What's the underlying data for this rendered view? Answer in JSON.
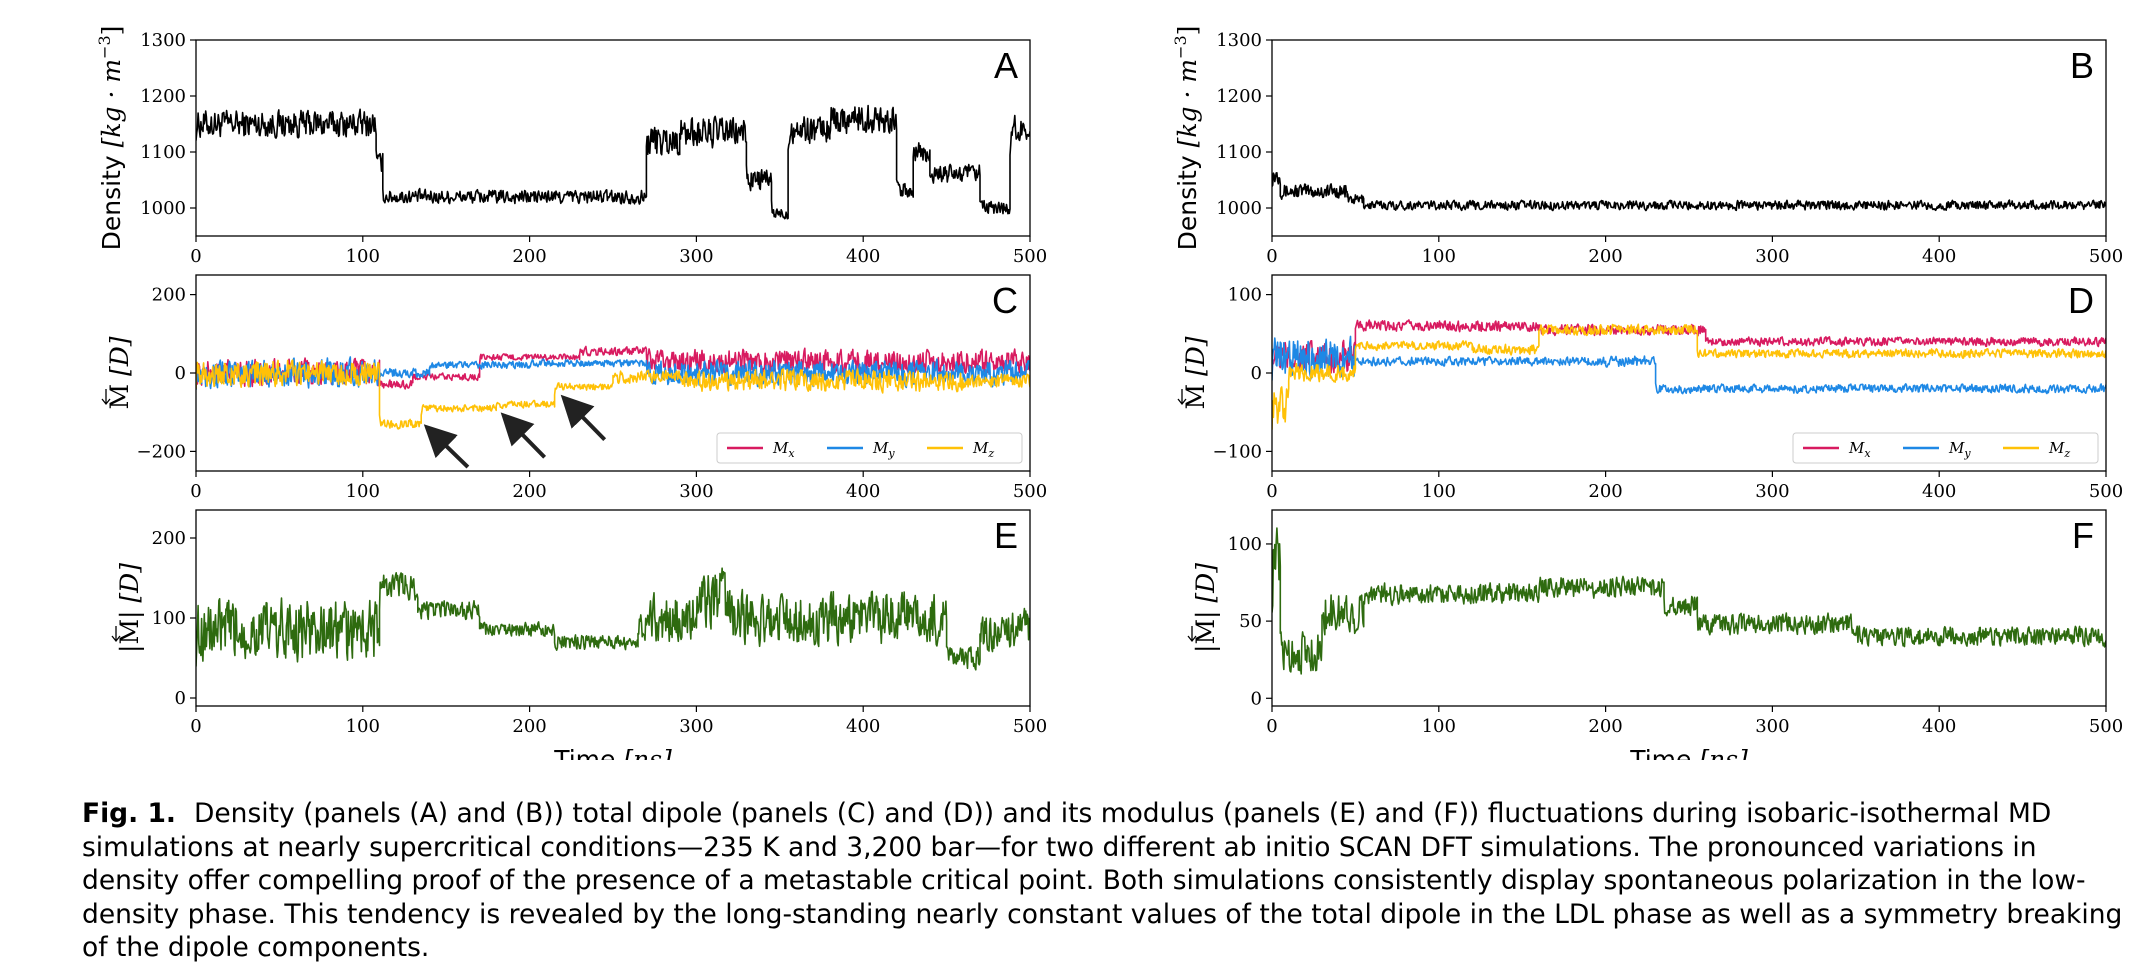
{
  "figure": {
    "panels_left": [
      "A",
      "C",
      "E"
    ],
    "panels_right": [
      "B",
      "D",
      "F"
    ]
  },
  "chart_data": [
    {
      "id": "A",
      "type": "line",
      "title": "",
      "xlabel": "",
      "ylabel": "Density [kg · m^-3]",
      "ylabel_parts": [
        "Density ",
        "[kg · m",
        "−3",
        "]"
      ],
      "xlim": [
        0,
        500
      ],
      "ylim": [
        950,
        1300
      ],
      "xticks": [
        0,
        100,
        200,
        300,
        400,
        500
      ],
      "xtick_labels": [
        "0",
        "100",
        "200",
        "300",
        "400",
        "500"
      ],
      "yticks": [
        1000,
        1100,
        1200,
        1300
      ],
      "ytick_labels": [
        "1000",
        "1100",
        "1200",
        "1300"
      ],
      "series": [
        {
          "color": "#000000",
          "segments": [
            [
              0,
              108,
              1150,
              55
            ],
            [
              108,
              112,
              1080,
              40
            ],
            [
              112,
              270,
              1020,
              28
            ],
            [
              270,
              290,
              1120,
              65
            ],
            [
              290,
              330,
              1135,
              60
            ],
            [
              330,
              345,
              1050,
              45
            ],
            [
              345,
              355,
              990,
              25
            ],
            [
              355,
              380,
              1140,
              55
            ],
            [
              380,
              420,
              1160,
              60
            ],
            [
              420,
              430,
              1030,
              35
            ],
            [
              430,
              440,
              1100,
              60
            ],
            [
              440,
              470,
              1060,
              40
            ],
            [
              470,
              488,
              1000,
              30
            ],
            [
              488,
              500,
              1140,
              55
            ]
          ]
        }
      ]
    },
    {
      "id": "B",
      "type": "line",
      "title": "",
      "xlabel": "",
      "ylabel": "Density [kg · m^-3]",
      "ylabel_parts": [
        "Density ",
        "[kg · m",
        "−3",
        "]"
      ],
      "xlim": [
        0,
        500
      ],
      "ylim": [
        950,
        1300
      ],
      "xticks": [
        0,
        100,
        200,
        300,
        400,
        500
      ],
      "xtick_labels": [
        "0",
        "100",
        "200",
        "300",
        "400",
        "500"
      ],
      "yticks": [
        1000,
        1100,
        1200,
        1300
      ],
      "ytick_labels": [
        "1000",
        "1100",
        "1200",
        "1300"
      ],
      "series": [
        {
          "color": "#000000",
          "segments": [
            [
              0,
              5,
              1060,
              40
            ],
            [
              5,
              45,
              1030,
              30
            ],
            [
              45,
              55,
              1015,
              22
            ],
            [
              55,
              500,
              1005,
              18
            ]
          ]
        }
      ]
    },
    {
      "id": "C",
      "type": "line",
      "title": "",
      "xlabel": "",
      "ylabel": "M [D]",
      "ylabel_parts": [
        "M",
        " [D]"
      ],
      "xlim": [
        0,
        500
      ],
      "ylim": [
        -250,
        250
      ],
      "xticks": [
        0,
        100,
        200,
        300,
        400,
        500
      ],
      "xtick_labels": [
        "0",
        "100",
        "200",
        "300",
        "400",
        "500"
      ],
      "yticks": [
        -200,
        0,
        200
      ],
      "ytick_labels": [
        "−200",
        "0",
        "200"
      ],
      "legend": {
        "placement": "lower-right",
        "entries": [
          "M_x",
          "M_y",
          "M_z"
        ]
      },
      "series": [
        {
          "name": "M_x",
          "label_sub": "x",
          "color": "#d81b60",
          "segments": [
            [
              0,
              110,
              0,
              75
            ],
            [
              110,
              130,
              -30,
              25
            ],
            [
              130,
              170,
              -10,
              20
            ],
            [
              170,
              230,
              40,
              18
            ],
            [
              230,
              270,
              55,
              25
            ],
            [
              270,
              500,
              30,
              65
            ]
          ]
        },
        {
          "name": "M_y",
          "label_sub": "y",
          "color": "#1e88e5",
          "segments": [
            [
              0,
              110,
              0,
              80
            ],
            [
              110,
              140,
              0,
              25
            ],
            [
              140,
              200,
              20,
              20
            ],
            [
              200,
              270,
              25,
              20
            ],
            [
              270,
              500,
              0,
              70
            ]
          ]
        },
        {
          "name": "M_z",
          "label_sub": "z",
          "color": "#ffc107",
          "segments": [
            [
              0,
              110,
              0,
              75
            ],
            [
              110,
              135,
              -130,
              25
            ],
            [
              135,
              180,
              -90,
              20
            ],
            [
              180,
              215,
              -80,
              20
            ],
            [
              215,
              250,
              -35,
              20
            ],
            [
              250,
              290,
              -10,
              35
            ],
            [
              290,
              460,
              -20,
              60
            ],
            [
              460,
              500,
              -20,
              40
            ]
          ]
        }
      ],
      "annotations": [
        {
          "type": "arrow",
          "from": [
            163,
            -240
          ],
          "to": [
            140,
            -145
          ]
        },
        {
          "type": "arrow",
          "from": [
            209,
            -215
          ],
          "to": [
            186,
            -115
          ]
        },
        {
          "type": "arrow",
          "from": [
            245,
            -170
          ],
          "to": [
            222,
            -70
          ]
        }
      ]
    },
    {
      "id": "D",
      "type": "line",
      "title": "",
      "xlabel": "",
      "ylabel": "M [D]",
      "ylabel_parts": [
        "M",
        " [D]"
      ],
      "xlim": [
        0,
        500
      ],
      "ylim": [
        -125,
        125
      ],
      "xticks": [
        0,
        100,
        200,
        300,
        400,
        500
      ],
      "xtick_labels": [
        "0",
        "100",
        "200",
        "300",
        "400",
        "500"
      ],
      "yticks": [
        -100,
        0,
        100
      ],
      "ytick_labels": [
        "−100",
        "0",
        "100"
      ],
      "legend": {
        "placement": "lower-right",
        "entries": [
          "M_x",
          "M_y",
          "M_z"
        ]
      },
      "series": [
        {
          "name": "M_x",
          "label_sub": "x",
          "color": "#d81b60",
          "segments": [
            [
              0,
              50,
              20,
              45
            ],
            [
              50,
              160,
              60,
              15
            ],
            [
              160,
              260,
              55,
              15
            ],
            [
              260,
              500,
              40,
              12
            ]
          ]
        },
        {
          "name": "M_y",
          "label_sub": "y",
          "color": "#1e88e5",
          "segments": [
            [
              0,
              50,
              20,
              55
            ],
            [
              50,
              200,
              15,
              12
            ],
            [
              200,
              230,
              15,
              15
            ],
            [
              230,
              500,
              -20,
              12
            ]
          ]
        },
        {
          "name": "M_z",
          "label_sub": "z",
          "color": "#ffc107",
          "segments": [
            [
              0,
              10,
              -40,
              60
            ],
            [
              10,
              50,
              0,
              25
            ],
            [
              50,
              120,
              35,
              12
            ],
            [
              120,
              160,
              30,
              15
            ],
            [
              160,
              255,
              55,
              15
            ],
            [
              255,
              500,
              25,
              12
            ]
          ]
        }
      ]
    },
    {
      "id": "E",
      "type": "line",
      "title": "",
      "xlabel": "Time [ns]",
      "xlabel_parts": [
        "Time ",
        "[ns]"
      ],
      "ylabel": "|M| [D]",
      "ylabel_parts": [
        "|M|",
        " [D]"
      ],
      "xlim": [
        0,
        500
      ],
      "ylim": [
        -10,
        235
      ],
      "xticks": [
        0,
        100,
        200,
        300,
        400,
        500
      ],
      "xtick_labels": [
        "0",
        "100",
        "200",
        "300",
        "400",
        "500"
      ],
      "yticks": [
        0,
        100,
        200
      ],
      "ytick_labels": [
        "0",
        "100",
        "200"
      ],
      "series": [
        {
          "color": "#2e6b0f",
          "segments": [
            [
              0,
              110,
              85,
              85
            ],
            [
              110,
              133,
              140,
              40
            ],
            [
              133,
              170,
              110,
              25
            ],
            [
              170,
              215,
              85,
              20
            ],
            [
              215,
              265,
              70,
              20
            ],
            [
              265,
              300,
              100,
              65
            ],
            [
              300,
              320,
              125,
              80
            ],
            [
              320,
              450,
              100,
              70
            ],
            [
              450,
              470,
              50,
              30
            ],
            [
              470,
              500,
              85,
              55
            ]
          ]
        }
      ]
    },
    {
      "id": "F",
      "type": "line",
      "title": "",
      "xlabel": "Time [ns]",
      "xlabel_parts": [
        "Time ",
        "[ns]"
      ],
      "ylabel": "|M| [D]",
      "ylabel_parts": [
        "|M|",
        " [D]"
      ],
      "xlim": [
        0,
        500
      ],
      "ylim": [
        -5,
        122
      ],
      "xticks": [
        0,
        100,
        200,
        300,
        400,
        500
      ],
      "xtick_labels": [
        "0",
        "100",
        "200",
        "300",
        "400",
        "500"
      ],
      "yticks": [
        0,
        50,
        100
      ],
      "ytick_labels": [
        "0",
        "50",
        "100"
      ],
      "series": [
        {
          "color": "#2e6b0f",
          "segments": [
            [
              0,
              5,
              85,
              55
            ],
            [
              5,
              30,
              30,
              30
            ],
            [
              30,
              55,
              55,
              30
            ],
            [
              55,
              160,
              68,
              15
            ],
            [
              160,
              235,
              72,
              15
            ],
            [
              235,
              255,
              60,
              15
            ],
            [
              255,
              350,
              48,
              15
            ],
            [
              350,
              500,
              40,
              14
            ]
          ]
        }
      ]
    }
  ],
  "caption": {
    "label": "Fig. 1.",
    "text": "Density (panels (A) and (B)) total dipole (panels (C) and (D)) and its modulus (panels (E) and (F)) fluctuations during isobaric-isothermal MD simulations at nearly supercritical conditions—235 K and 3,200 bar—for two different ab initio SCAN DFT simulations. The pronounced variations in density offer compelling proof of the presence of a metastable critical point. Both simulations consistently display spontaneous polarization in the low-density phase. This tendency is revealed by the long-standing nearly constant values of the total dipole in the LDL phase as well as a symmetry breaking of the dipole components."
  }
}
